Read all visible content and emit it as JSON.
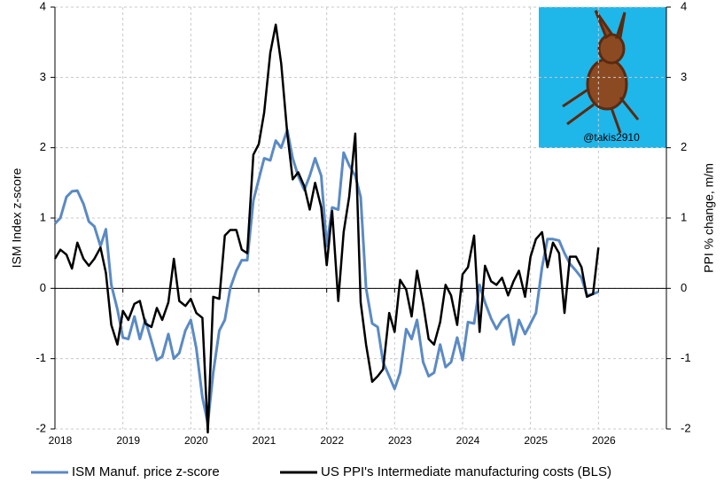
{
  "chart_data": {
    "type": "line",
    "x": [
      2018.0,
      2018.08,
      2018.17,
      2018.25,
      2018.33,
      2018.42,
      2018.5,
      2018.58,
      2018.67,
      2018.75,
      2018.83,
      2018.92,
      2019.0,
      2019.08,
      2019.17,
      2019.25,
      2019.33,
      2019.42,
      2019.5,
      2019.58,
      2019.67,
      2019.75,
      2019.83,
      2019.92,
      2020.0,
      2020.08,
      2020.17,
      2020.25,
      2020.33,
      2020.42,
      2020.5,
      2020.58,
      2020.67,
      2020.75,
      2020.83,
      2020.92,
      2021.0,
      2021.08,
      2021.17,
      2021.25,
      2021.33,
      2021.42,
      2021.5,
      2021.58,
      2021.67,
      2021.75,
      2021.83,
      2021.92,
      2022.0,
      2022.08,
      2022.17,
      2022.25,
      2022.33,
      2022.42,
      2022.5,
      2022.58,
      2022.67,
      2022.75,
      2022.83,
      2022.92,
      2023.0,
      2023.08,
      2023.17,
      2023.25,
      2023.33,
      2023.42,
      2023.5,
      2023.58,
      2023.67,
      2023.75,
      2023.83,
      2023.92,
      2024.0,
      2024.08,
      2024.17,
      2024.25,
      2024.33,
      2024.42,
      2024.5,
      2024.58,
      2024.67,
      2024.75,
      2024.83,
      2024.92,
      2025.0,
      2025.08,
      2025.17,
      2025.25,
      2025.33,
      2025.42,
      2025.5,
      2025.58,
      2025.67,
      2025.75,
      2025.83,
      2025.92,
      2026.0
    ],
    "series": [
      {
        "name": "ISM Manuf. price z-score",
        "color": "#5b8ac4",
        "values": [
          0.92,
          1.0,
          1.3,
          1.38,
          1.39,
          1.2,
          0.95,
          0.88,
          0.6,
          0.84,
          0.05,
          -0.3,
          -0.7,
          -0.72,
          -0.4,
          -0.72,
          -0.45,
          -0.75,
          -1.02,
          -0.97,
          -0.65,
          -1.0,
          -0.92,
          -0.6,
          -0.45,
          -0.85,
          -1.55,
          -1.92,
          -1.2,
          -0.6,
          -0.45,
          0.0,
          0.25,
          0.4,
          0.4,
          1.25,
          1.55,
          1.85,
          1.82,
          2.1,
          2.0,
          2.25,
          1.85,
          1.6,
          1.4,
          1.6,
          1.85,
          1.6,
          0.6,
          1.15,
          1.12,
          1.93,
          1.75,
          1.6,
          1.3,
          0.0,
          -0.5,
          -0.55,
          -1.05,
          -1.25,
          -1.43,
          -1.2,
          -0.58,
          -0.72,
          -0.45,
          -1.05,
          -1.25,
          -1.2,
          -0.8,
          -1.12,
          -1.05,
          -0.7,
          -1.02,
          -0.48,
          -0.5,
          0.05,
          -0.2,
          -0.43,
          -0.58,
          -0.45,
          -0.38,
          -0.8,
          -0.45,
          -0.65,
          -0.5,
          -0.35,
          0.3,
          0.7,
          0.7,
          0.68,
          0.5,
          0.35,
          0.25,
          0.15,
          -0.1,
          -0.08,
          -0.05
        ]
      },
      {
        "name": "US PPI's Intermediate manufacturing costs (BLS)",
        "color": "#000000",
        "axis": "y2",
        "values": [
          0.42,
          0.55,
          0.48,
          0.28,
          0.65,
          0.42,
          0.32,
          0.42,
          0.58,
          0.22,
          -0.52,
          -0.8,
          -0.32,
          -0.45,
          -0.22,
          -0.18,
          -0.5,
          -0.55,
          -0.28,
          -0.45,
          -0.2,
          0.42,
          -0.18,
          -0.25,
          -0.15,
          -0.35,
          -0.42,
          -2.05,
          -0.12,
          -0.15,
          0.75,
          0.83,
          0.83,
          0.55,
          0.5,
          1.9,
          2.05,
          2.5,
          3.35,
          3.75,
          3.2,
          2.2,
          1.55,
          1.65,
          1.45,
          1.12,
          1.5,
          1.15,
          0.33,
          1.1,
          -0.18,
          0.8,
          1.3,
          2.2,
          -0.2,
          -0.8,
          -1.33,
          -1.25,
          -1.15,
          -0.35,
          -0.62,
          0.12,
          -0.02,
          -0.4,
          0.25,
          -0.22,
          -0.72,
          -0.8,
          -0.48,
          0.05,
          -0.1,
          -0.52,
          0.2,
          0.3,
          0.75,
          -0.62,
          0.32,
          0.1,
          0.05,
          0.15,
          -0.1,
          0.1,
          0.25,
          -0.12,
          0.45,
          0.7,
          0.8,
          0.3,
          0.65,
          0.5,
          -0.35,
          0.45,
          0.45,
          0.3,
          -0.12,
          -0.08,
          0.58
        ]
      }
    ],
    "xlim": [
      2018,
      2027
    ],
    "xticks": [
      2018,
      2019,
      2020,
      2021,
      2022,
      2023,
      2024,
      2025,
      2026
    ],
    "ylim": [
      -2,
      4
    ],
    "yticks": [
      -2,
      -1,
      0,
      1,
      2,
      3,
      4
    ],
    "y2lim": [
      -2,
      4
    ],
    "y2ticks": [
      -2,
      -1,
      0,
      1,
      2,
      3,
      4
    ],
    "ylabel": "ISM Index z-score",
    "y2label": "PPI % change, m/m",
    "grid": true,
    "legend": "bottom",
    "annotation": "@takis2910"
  }
}
